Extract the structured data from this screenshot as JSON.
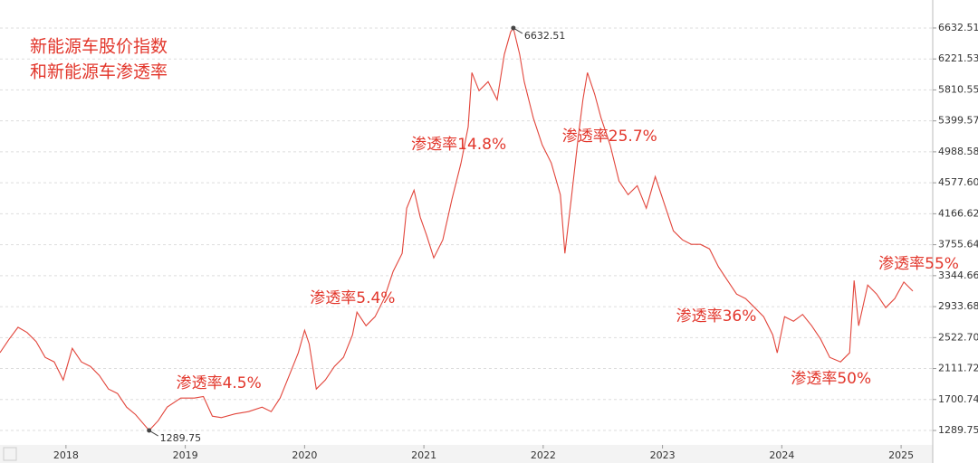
{
  "chart_data": {
    "type": "line",
    "title": "新能源车股价指数",
    "subtitle": "和新能源车渗透率",
    "color": "#e2453b",
    "grid": true,
    "xlim": [
      2017.447,
      2025.265
    ],
    "xticks": [
      2018,
      2019,
      2020,
      2021,
      2022,
      2023,
      2024,
      2025
    ],
    "ylim": [
      1122,
      6740
    ],
    "yticks": [
      1289.75,
      1700.74,
      2111.72,
      {
        "value": 2522.7,
        "label": "2522.70"
      },
      2933.68,
      3344.66,
      3755.64,
      4166.62,
      {
        "value": 4577.6,
        "label": "4577.60"
      },
      4988.58,
      5399.57,
      5810.55,
      6221.53,
      6632.51
    ],
    "x": [
      2017.447,
      2017.523,
      2017.598,
      2017.674,
      2017.75,
      2017.826,
      2017.902,
      2017.977,
      2018.053,
      2018.129,
      2018.205,
      2018.28,
      2018.356,
      2018.432,
      2018.508,
      2018.583,
      2018.659,
      2018.697,
      2018.773,
      2018.848,
      2018.962,
      2019.076,
      2019.152,
      2019.227,
      2019.303,
      2019.417,
      2019.53,
      2019.644,
      2019.72,
      2019.795,
      2019.871,
      2019.947,
      2020.0,
      2020.038,
      2020.098,
      2020.174,
      2020.25,
      2020.326,
      2020.402,
      2020.439,
      2020.515,
      2020.591,
      2020.667,
      2020.742,
      2020.818,
      2020.856,
      2020.917,
      2020.97,
      2021.023,
      2021.083,
      2021.159,
      2021.235,
      2021.311,
      2021.371,
      2021.402,
      2021.462,
      2021.538,
      2021.614,
      2021.674,
      2021.727,
      2021.75,
      2021.803,
      2021.841,
      2021.917,
      2021.992,
      2022.068,
      2022.144,
      2022.182,
      2022.235,
      2022.295,
      2022.333,
      2022.371,
      2022.432,
      2022.485,
      2022.561,
      2022.636,
      2022.712,
      2022.788,
      2022.864,
      2022.939,
      2023.015,
      2023.091,
      2023.167,
      2023.242,
      2023.318,
      2023.394,
      2023.47,
      2023.545,
      2023.621,
      2023.697,
      2023.773,
      2023.848,
      2023.924,
      2023.962,
      2024.023,
      2024.098,
      2024.174,
      2024.25,
      2024.326,
      2024.402,
      2024.492,
      2024.568,
      2024.606,
      2024.644,
      2024.72,
      2024.795,
      2024.871,
      2024.947,
      2025.023,
      2025.098
    ],
    "values": [
      2322,
      2500,
      2660,
      2590,
      2470,
      2260,
      2200,
      1960,
      2380,
      2200,
      2140,
      2020,
      1840,
      1780,
      1600,
      1500,
      1360,
      1289.75,
      1420,
      1600,
      1720,
      1720,
      1740,
      1480,
      1460,
      1510,
      1540,
      1600,
      1540,
      1720,
      2020,
      2320,
      2620,
      2440,
      1840,
      1960,
      2140,
      2260,
      2560,
      2860,
      2680,
      2800,
      3040,
      3400,
      3640,
      4240,
      4480,
      4120,
      3880,
      3580,
      3820,
      4360,
      4840,
      5320,
      6040,
      5800,
      5920,
      5680,
      6280,
      6580,
      6632.51,
      6280,
      5920,
      5440,
      5080,
      4840,
      4420,
      3640,
      4360,
      5200,
      5680,
      6040,
      5750,
      5440,
      5080,
      4600,
      4420,
      4540,
      4240,
      4660,
      4300,
      3940,
      3820,
      3760,
      3760,
      3700,
      3460,
      3280,
      3100,
      3040,
      2920,
      2800,
      2560,
      2320,
      2800,
      2740,
      2830,
      2680,
      2500,
      2260,
      2200,
      2320,
      3280,
      2680,
      3220,
      3100,
      2920,
      3040,
      3260,
      3140
    ],
    "markers": [
      {
        "x": 2021.75,
        "value": 6632.51
      },
      {
        "x": 2018.697,
        "value": 1289.75
      }
    ],
    "annotations": [
      {
        "text": "渗透率4.5%",
        "x": 2018.924,
        "y": 1914
      },
      {
        "text": "渗透率5.4%",
        "x": 2020.045,
        "y": 3043
      },
      {
        "text": "渗透率14.8%",
        "x": 2020.894,
        "y": 5084
      },
      {
        "text": "渗透率25.7%",
        "x": 2022.159,
        "y": 5192
      },
      {
        "text": "渗透率36%",
        "x": 2023.114,
        "y": 2802
      },
      {
        "text": "渗透率50%",
        "x": 2024.076,
        "y": 1974
      },
      {
        "text": "渗透率55%",
        "x": 2024.811,
        "y": 3499
      }
    ]
  }
}
